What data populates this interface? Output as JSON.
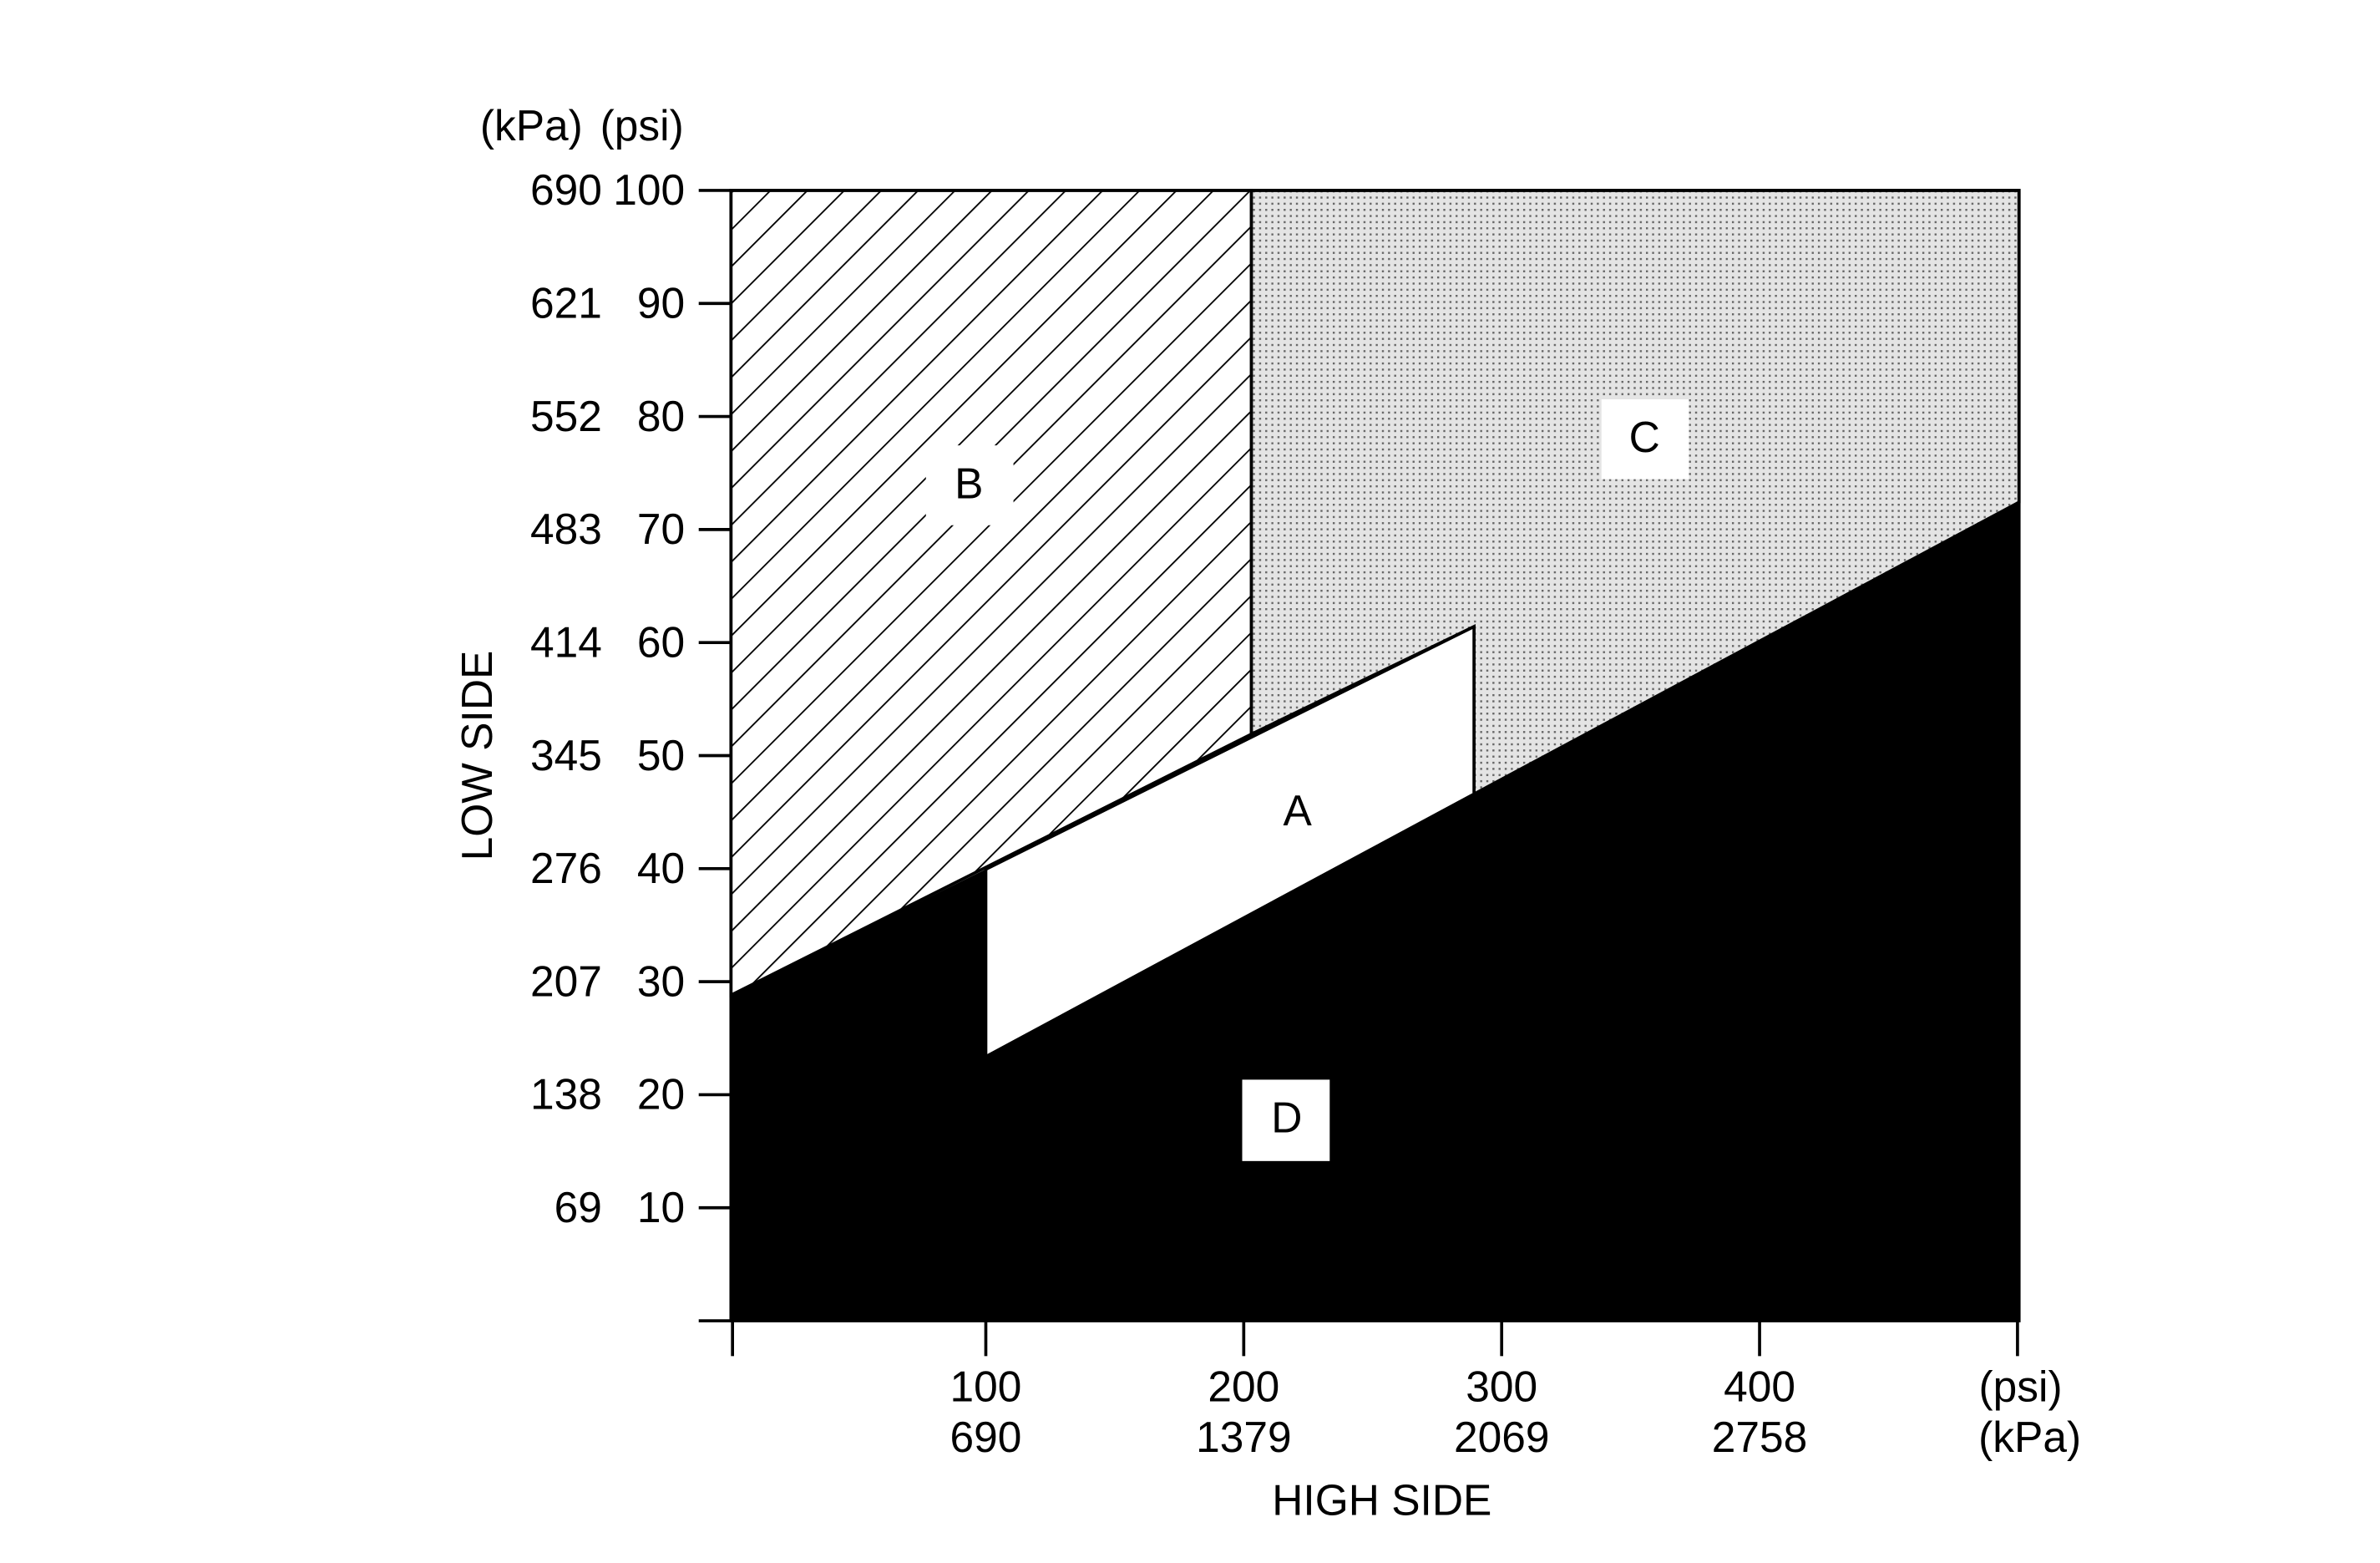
{
  "y_axis": {
    "title": "LOW SIDE",
    "unit_labels": [
      "(kPa)",
      "(psi)"
    ],
    "ticks": [
      {
        "kpa": 690,
        "psi": 100
      },
      {
        "kpa": 621,
        "psi": 90
      },
      {
        "kpa": 552,
        "psi": 80
      },
      {
        "kpa": 483,
        "psi": 70
      },
      {
        "kpa": 414,
        "psi": 60
      },
      {
        "kpa": 345,
        "psi": 50
      },
      {
        "kpa": 276,
        "psi": 40
      },
      {
        "kpa": 207,
        "psi": 30
      },
      {
        "kpa": 138,
        "psi": 20
      },
      {
        "kpa": 69,
        "psi": 10
      }
    ]
  },
  "x_axis": {
    "title": "HIGH SIDE",
    "unit_labels": [
      "(psi)",
      "(kPa)"
    ],
    "ticks": [
      {
        "psi": 100,
        "kpa": 690
      },
      {
        "psi": 200,
        "kpa": 1379
      },
      {
        "psi": 300,
        "kpa": 2069
      },
      {
        "psi": 400,
        "kpa": 2758
      }
    ]
  },
  "regions": [
    "A",
    "B",
    "C",
    "D"
  ]
}
